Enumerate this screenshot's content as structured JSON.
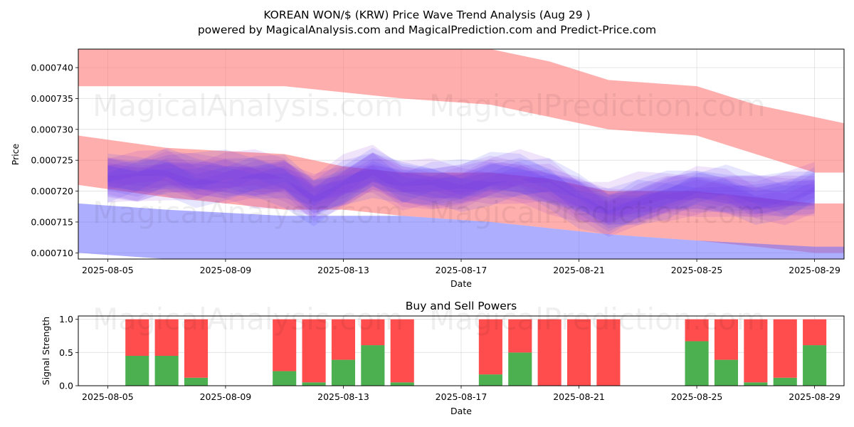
{
  "title": "KOREAN WON/$ (KRW) Price Wave Trend Analysis (Aug 29 )",
  "subtitle": "powered by MagicalAnalysis.com and MagicalPrediction.com and Predict-Price.com",
  "watermarks": [
    "MagicalAnalysis.com",
    "MagicalPrediction.com"
  ],
  "colors": {
    "upper_band": "#ff6b6b",
    "lower_band": "#6b6bff",
    "wave_blue": "#3b3bff",
    "wave_purple": "#8a2be2",
    "buy": "#4caf50",
    "sell": "#ff4d4d"
  },
  "chart_data": [
    {
      "type": "area",
      "xlabel": "Date",
      "ylabel": "Price",
      "xlim": [
        "2025-08-04",
        "2025-08-30"
      ],
      "ylim": [
        0.000709,
        0.000743
      ],
      "xticks": [
        "2025-08-05",
        "2025-08-09",
        "2025-08-13",
        "2025-08-17",
        "2025-08-21",
        "2025-08-25",
        "2025-08-29"
      ],
      "yticks": [
        0.00071,
        0.000715,
        0.00072,
        0.000725,
        0.00073,
        0.000735,
        0.00074
      ],
      "ytick_labels": [
        "0.000710",
        "0.000715",
        "0.000720",
        "0.000725",
        "0.000730",
        "0.000735",
        "0.000740"
      ],
      "grid": true,
      "bands": [
        {
          "color": "upper",
          "x": [
            "2025-08-04",
            "2025-08-07",
            "2025-08-11",
            "2025-08-15",
            "2025-08-18",
            "2025-08-20",
            "2025-08-22",
            "2025-08-25",
            "2025-08-27",
            "2025-08-29",
            "2025-08-30"
          ],
          "upper": [
            0.000745,
            0.000745,
            0.000745,
            0.000744,
            0.000743,
            0.000741,
            0.000738,
            0.000737,
            0.000734,
            0.000732,
            0.000731
          ],
          "lower": [
            0.000737,
            0.000737,
            0.000737,
            0.000735,
            0.000734,
            0.000732,
            0.00073,
            0.000729,
            0.000726,
            0.000723,
            0.000723
          ]
        },
        {
          "color": "upper",
          "x": [
            "2025-08-04",
            "2025-08-07",
            "2025-08-11",
            "2025-08-13",
            "2025-08-15",
            "2025-08-18",
            "2025-08-20",
            "2025-08-22",
            "2025-08-25",
            "2025-08-27",
            "2025-08-29",
            "2025-08-30"
          ],
          "upper": [
            0.000729,
            0.000727,
            0.000726,
            0.000724,
            0.000723,
            0.000723,
            0.000722,
            0.00072,
            0.00072,
            0.000719,
            0.000718,
            0.000718
          ],
          "lower": [
            0.000721,
            0.000719,
            0.000717,
            0.000717,
            0.000716,
            0.000715,
            0.000714,
            0.000713,
            0.000712,
            0.000711,
            0.00071,
            0.00071
          ]
        },
        {
          "color": "lower",
          "x": [
            "2025-08-04",
            "2025-08-07",
            "2025-08-11",
            "2025-08-15",
            "2025-08-18",
            "2025-08-20",
            "2025-08-22",
            "2025-08-25",
            "2025-08-29",
            "2025-08-30"
          ],
          "upper": [
            0.000718,
            0.000717,
            0.000716,
            0.000716,
            0.000715,
            0.000714,
            0.000713,
            0.000712,
            0.000711,
            0.000711
          ],
          "lower": [
            0.00071,
            0.000709,
            0.000709,
            0.000708,
            0.000708,
            0.000707,
            0.000707,
            0.000706,
            0.000705,
            0.000705
          ]
        }
      ],
      "waves": {
        "x": [
          "2025-08-05",
          "2025-08-06",
          "2025-08-07",
          "2025-08-08",
          "2025-08-09",
          "2025-08-10",
          "2025-08-11",
          "2025-08-12",
          "2025-08-13",
          "2025-08-14",
          "2025-08-15",
          "2025-08-16",
          "2025-08-17",
          "2025-08-18",
          "2025-08-19",
          "2025-08-20",
          "2025-08-21",
          "2025-08-22",
          "2025-08-23",
          "2025-08-24",
          "2025-08-25",
          "2025-08-26",
          "2025-08-27",
          "2025-08-28",
          "2025-08-29"
        ],
        "center": [
          0.000722,
          0.000722,
          0.000723,
          0.000722,
          0.000722,
          0.000722,
          0.000722,
          0.000719,
          0.000721,
          0.000723,
          0.000721,
          0.000721,
          0.000721,
          0.000722,
          0.000722,
          0.000721,
          0.000719,
          0.000717,
          0.000718,
          0.000719,
          0.00072,
          0.00072,
          0.000719,
          0.000719,
          0.00072
        ],
        "half_width": 2.2e-06,
        "count": 12
      }
    },
    {
      "type": "bar",
      "title": "Buy and Sell Powers",
      "xlabel": "Date",
      "ylabel": "Signal Strength",
      "xlim": [
        "2025-08-04",
        "2025-08-30"
      ],
      "ylim": [
        0,
        1.05
      ],
      "xticks": [
        "2025-08-05",
        "2025-08-09",
        "2025-08-13",
        "2025-08-17",
        "2025-08-21",
        "2025-08-25",
        "2025-08-29"
      ],
      "yticks": [
        0.0,
        0.5,
        1.0
      ],
      "ytick_labels": [
        "0.0",
        "0.5",
        "1.0"
      ],
      "grid": true,
      "categories": [
        "2025-08-06",
        "2025-08-07",
        "2025-08-08",
        "2025-08-11",
        "2025-08-12",
        "2025-08-13",
        "2025-08-14",
        "2025-08-15",
        "2025-08-18",
        "2025-08-19",
        "2025-08-20",
        "2025-08-21",
        "2025-08-22",
        "2025-08-25",
        "2025-08-26",
        "2025-08-27",
        "2025-08-28",
        "2025-08-29"
      ],
      "series": [
        {
          "color": "buy",
          "values": [
            0.45,
            0.45,
            0.12,
            0.22,
            0.05,
            0.39,
            0.61,
            0.05,
            0.17,
            0.5,
            0.0,
            0.0,
            0.0,
            0.67,
            0.39,
            0.05,
            0.12,
            0.61
          ]
        },
        {
          "color": "sell",
          "values": [
            0.55,
            0.55,
            0.88,
            0.78,
            0.95,
            0.61,
            0.39,
            0.95,
            0.83,
            0.5,
            1.0,
            1.0,
            1.0,
            0.33,
            0.61,
            0.95,
            0.88,
            0.39
          ]
        }
      ]
    }
  ]
}
